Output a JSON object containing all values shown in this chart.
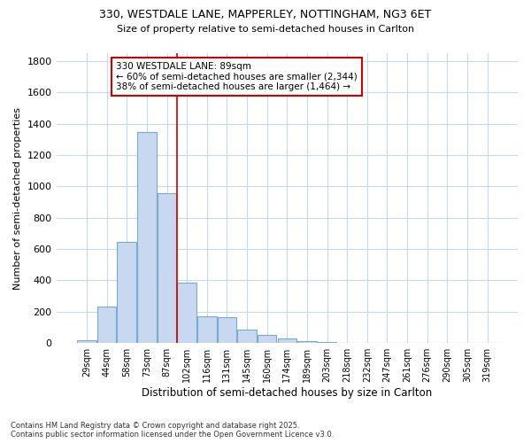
{
  "title_line1": "330, WESTDALE LANE, MAPPERLEY, NOTTINGHAM, NG3 6ET",
  "title_line2": "Size of property relative to semi-detached houses in Carlton",
  "xlabel": "Distribution of semi-detached houses by size in Carlton",
  "ylabel": "Number of semi-detached properties",
  "categories": [
    "29sqm",
    "44sqm",
    "58sqm",
    "73sqm",
    "87sqm",
    "102sqm",
    "116sqm",
    "131sqm",
    "145sqm",
    "160sqm",
    "174sqm",
    "189sqm",
    "203sqm",
    "218sqm",
    "232sqm",
    "247sqm",
    "261sqm",
    "276sqm",
    "290sqm",
    "305sqm",
    "319sqm"
  ],
  "values": [
    20,
    235,
    645,
    1345,
    955,
    385,
    170,
    165,
    85,
    50,
    30,
    15,
    5,
    0,
    0,
    0,
    0,
    0,
    0,
    0,
    0
  ],
  "bar_color": "#c8d8f0",
  "bar_edge_color": "#7aaad0",
  "vline_color": "#cc0000",
  "vline_index": 4,
  "annotation_text_line1": "330 WESTDALE LANE: 89sqm",
  "annotation_text_line2": "← 60% of semi-detached houses are smaller (2,344)",
  "annotation_text_line3": "38% of semi-detached houses are larger (1,464) →",
  "annotation_box_edgecolor": "#cc0000",
  "ylim": [
    0,
    1850
  ],
  "yticks": [
    0,
    200,
    400,
    600,
    800,
    1000,
    1200,
    1400,
    1600,
    1800
  ],
  "footer_line1": "Contains HM Land Registry data © Crown copyright and database right 2025.",
  "footer_line2": "Contains public sector information licensed under the Open Government Licence v3.0.",
  "bg_color": "#ffffff",
  "plot_bg_color": "#ffffff",
  "grid_color": "#c8d8f0"
}
